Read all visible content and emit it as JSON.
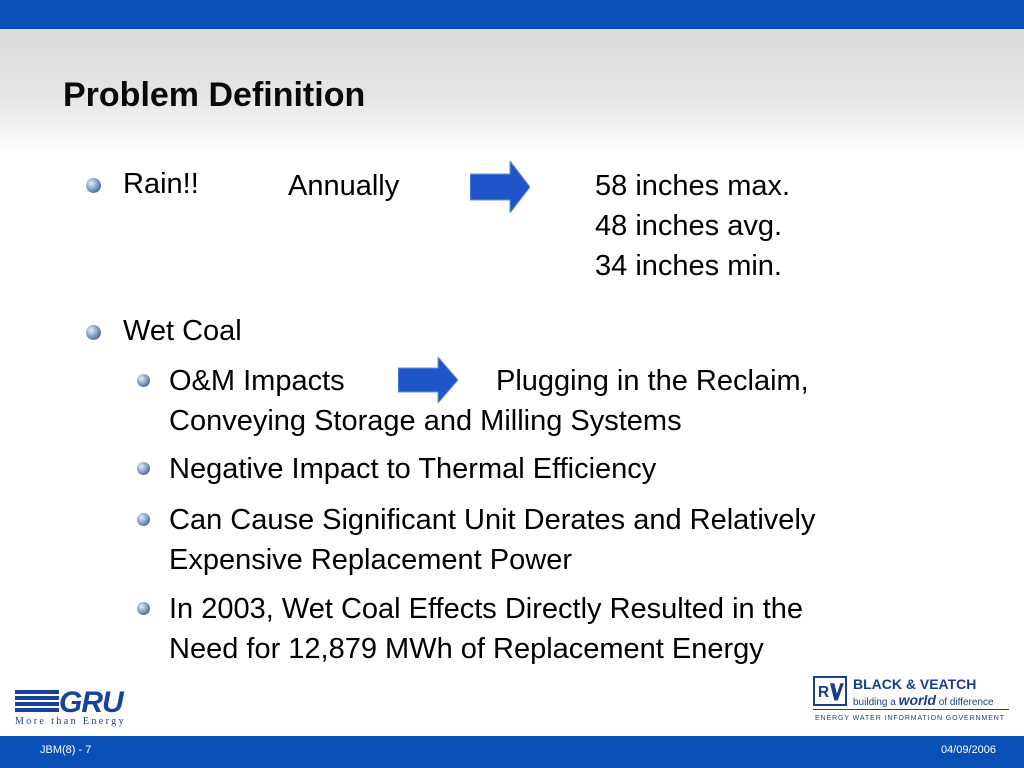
{
  "slide": {
    "title": "Problem Definition"
  },
  "rain": {
    "label": "Rain!!",
    "period": "Annually",
    "values": [
      "58 inches max.",
      "48 inches avg.",
      "34 inches min."
    ]
  },
  "wet_coal": {
    "label": "Wet Coal",
    "om_label": "O&M Impacts",
    "om_result_line1": "Plugging in the Reclaim,",
    "om_result_line2": "Conveying Storage and Milling Systems",
    "thermal": "Negative Impact to Thermal Efficiency",
    "derates_line1": "Can Cause Significant Unit Derates and Relatively",
    "derates_line2": "Expensive Replacement Power",
    "energy_line1": "In 2003, Wet Coal Effects Directly Resulted in the",
    "energy_line2": "Need for 12,879 MWh of Replacement Energy"
  },
  "logos": {
    "gru_name": "GRU",
    "gru_tagline": "More than Energy",
    "bv_name": "BLACK & VEATCH",
    "bv_tag_pre": "building a ",
    "bv_tag_world": "world",
    "bv_tag_post": " of difference",
    "bv_categories": "ENERGY   WATER   INFORMATION   GOVERNMENT"
  },
  "footer": {
    "left": "JBM(8) - 7",
    "right": "04/09/2006"
  },
  "colors": {
    "bar_blue": "#0a4fb5",
    "arrow_blue": "#1f55c9",
    "logo_blue": "#17429a"
  }
}
